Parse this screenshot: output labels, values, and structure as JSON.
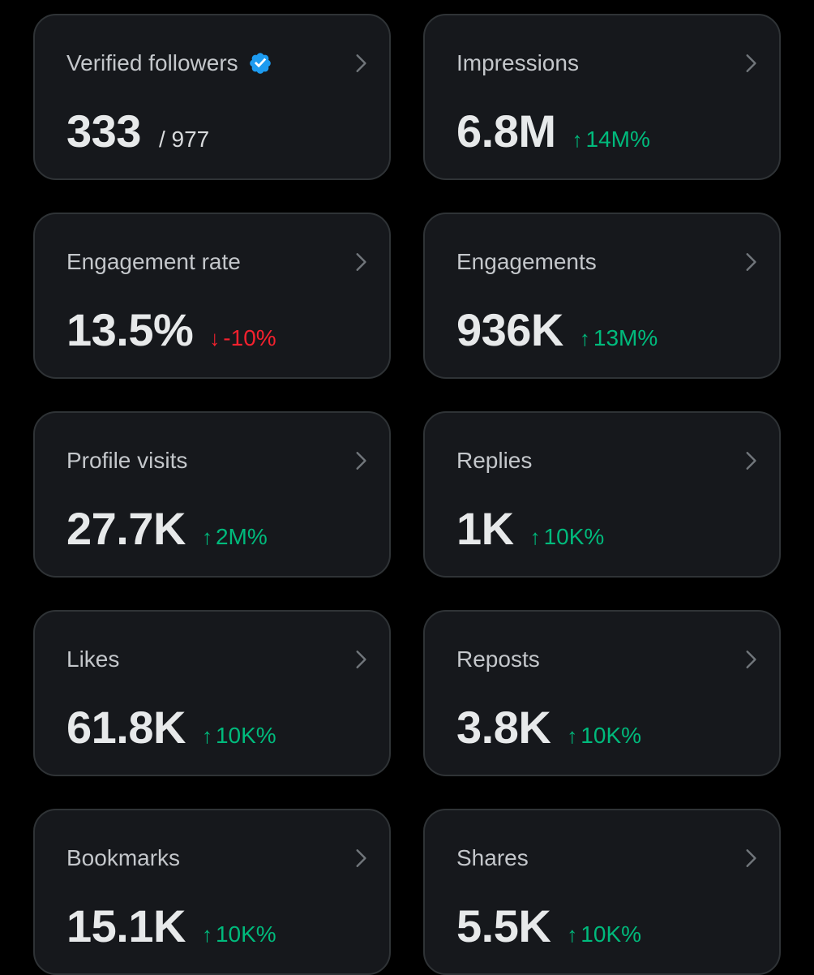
{
  "colors": {
    "background": "#000000",
    "card_bg": "#16181c",
    "card_border": "#2f3336",
    "up": "#00ba7c",
    "down": "#f4212e",
    "verified": "#1d9bf0"
  },
  "cards": [
    {
      "label": "Verified followers",
      "icon": "verified-badge-icon",
      "value": "333",
      "total": "/ 977"
    },
    {
      "label": "Impressions",
      "value": "6.8M",
      "change": {
        "direction": "up",
        "arrow": "↑",
        "text": "14M%"
      }
    },
    {
      "label": "Engagement rate",
      "value": "13.5%",
      "change": {
        "direction": "down",
        "arrow": "↓",
        "text": "-10%"
      }
    },
    {
      "label": "Engagements",
      "value": "936K",
      "change": {
        "direction": "up",
        "arrow": "↑",
        "text": "13M%"
      }
    },
    {
      "label": "Profile visits",
      "value": "27.7K",
      "change": {
        "direction": "up",
        "arrow": "↑",
        "text": "2M%"
      }
    },
    {
      "label": "Replies",
      "value": "1K",
      "change": {
        "direction": "up",
        "arrow": "↑",
        "text": "10K%"
      }
    },
    {
      "label": "Likes",
      "value": "61.8K",
      "change": {
        "direction": "up",
        "arrow": "↑",
        "text": "10K%"
      }
    },
    {
      "label": "Reposts",
      "value": "3.8K",
      "change": {
        "direction": "up",
        "arrow": "↑",
        "text": "10K%"
      }
    },
    {
      "label": "Bookmarks",
      "value": "15.1K",
      "change": {
        "direction": "up",
        "arrow": "↑",
        "text": "10K%"
      }
    },
    {
      "label": "Shares",
      "value": "5.5K",
      "change": {
        "direction": "up",
        "arrow": "↑",
        "text": "10K%"
      }
    }
  ]
}
